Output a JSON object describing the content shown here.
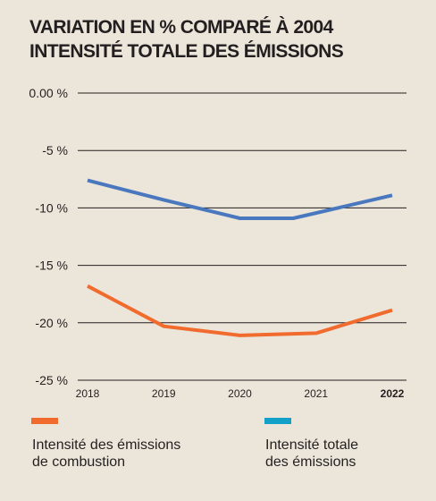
{
  "title_lines": [
    "VARIATION EN % COMPARÉ À 2004",
    "INTENSITÉ TOTALE DES ÉMISSIONS"
  ],
  "colors": {
    "background": "#ece6da",
    "grid": "#231f20",
    "series_total": "#4a78be",
    "series_combustion": "#f06b2d",
    "legend_total_swatch": "#13a0c8",
    "legend_combustion_swatch": "#f06b2d"
  },
  "legend": [
    {
      "line1": "Intensité des émissions",
      "line2": "de combustion"
    },
    {
      "line1": "Intensité totale",
      "line2": "des émissions"
    }
  ],
  "chart_data": {
    "type": "line",
    "title": "VARIATION EN % COMPARÉ À 2004 INTENSITÉ TOTALE DES ÉMISSIONS",
    "x": [
      "2018",
      "2019",
      "2020",
      "2021",
      "2022"
    ],
    "x_bold": [
      "2022"
    ],
    "y_ticks": [
      0,
      -5,
      -10,
      -15,
      -20,
      -25
    ],
    "y_tick_labels": [
      "0.00 %",
      "-5 %",
      "-10 %",
      "-15 %",
      "-20 %",
      "-25 %"
    ],
    "ylim": [
      -25,
      0
    ],
    "grid": true,
    "series": [
      {
        "name": "Intensité totale des émissions",
        "points": [
          {
            "x": "2018",
            "y": -7.6
          },
          {
            "x": "2019",
            "y": -9.3
          },
          {
            "x": "2020",
            "y": -10.9
          },
          {
            "x": "2020.7",
            "y": -10.9
          },
          {
            "x": "2022",
            "y": -8.9
          }
        ]
      },
      {
        "name": "Intensité des émissions de combustion",
        "points": [
          {
            "x": "2018",
            "y": -16.8
          },
          {
            "x": "2019",
            "y": -20.3
          },
          {
            "x": "2020",
            "y": -21.1
          },
          {
            "x": "2021",
            "y": -20.9
          },
          {
            "x": "2022",
            "y": -18.9
          }
        ]
      }
    ]
  }
}
